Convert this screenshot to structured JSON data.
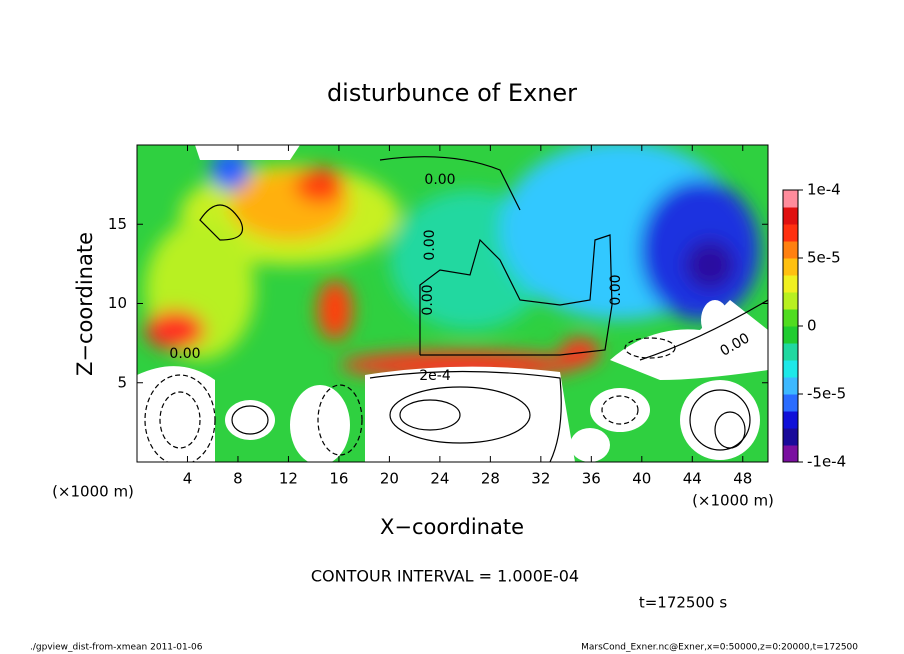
{
  "chart_data": {
    "type": "contour",
    "title": "disturbunce of Exner",
    "x_label": "X−coordinate",
    "y_label": "Z−coordinate",
    "x_unit": "(×1000 m)",
    "y_unit": "(×1000 m)",
    "xlim": [
      0,
      50
    ],
    "xticks": [
      4,
      8,
      12,
      16,
      20,
      24,
      28,
      32,
      36,
      40,
      44,
      48
    ],
    "ylim": [
      0,
      20
    ],
    "yticks": [
      5,
      10,
      15
    ],
    "clim": [
      -0.0001,
      0.0001
    ],
    "cticks": [
      {
        "value": 0.0001,
        "label": "1e-4"
      },
      {
        "value": 5e-05,
        "label": "5e-5"
      },
      0,
      {
        "value": -5e-05,
        "label": "-5e-5"
      },
      {
        "value": -0.0001,
        "label": "-1e-4"
      }
    ],
    "colorbar_colors": [
      "#7a0fa0",
      "#1a0a9a",
      "#1010d8",
      "#2a6cff",
      "#3db8ff",
      "#1ee8e8",
      "#20d8a0",
      "#20cc30",
      "#50dc20",
      "#b8f020",
      "#f0f020",
      "#ffc010",
      "#ff8010",
      "#ff3010",
      "#e01010",
      "#ff8c9c"
    ],
    "annotations": [
      "0.00",
      "0.00",
      "0.00",
      "0.00",
      "0.00",
      "0.00",
      "2e-4"
    ],
    "contour_interval": "CONTOUR INTERVAL = 1.000E-04",
    "time_label": "t=172500 s",
    "footer_left": "./gpview_dist-from-xmean  2011-01-06",
    "footer_right": "MarsCond_Exner.nc@Exner,x=0:50000,z=0:20000,t=172500"
  }
}
